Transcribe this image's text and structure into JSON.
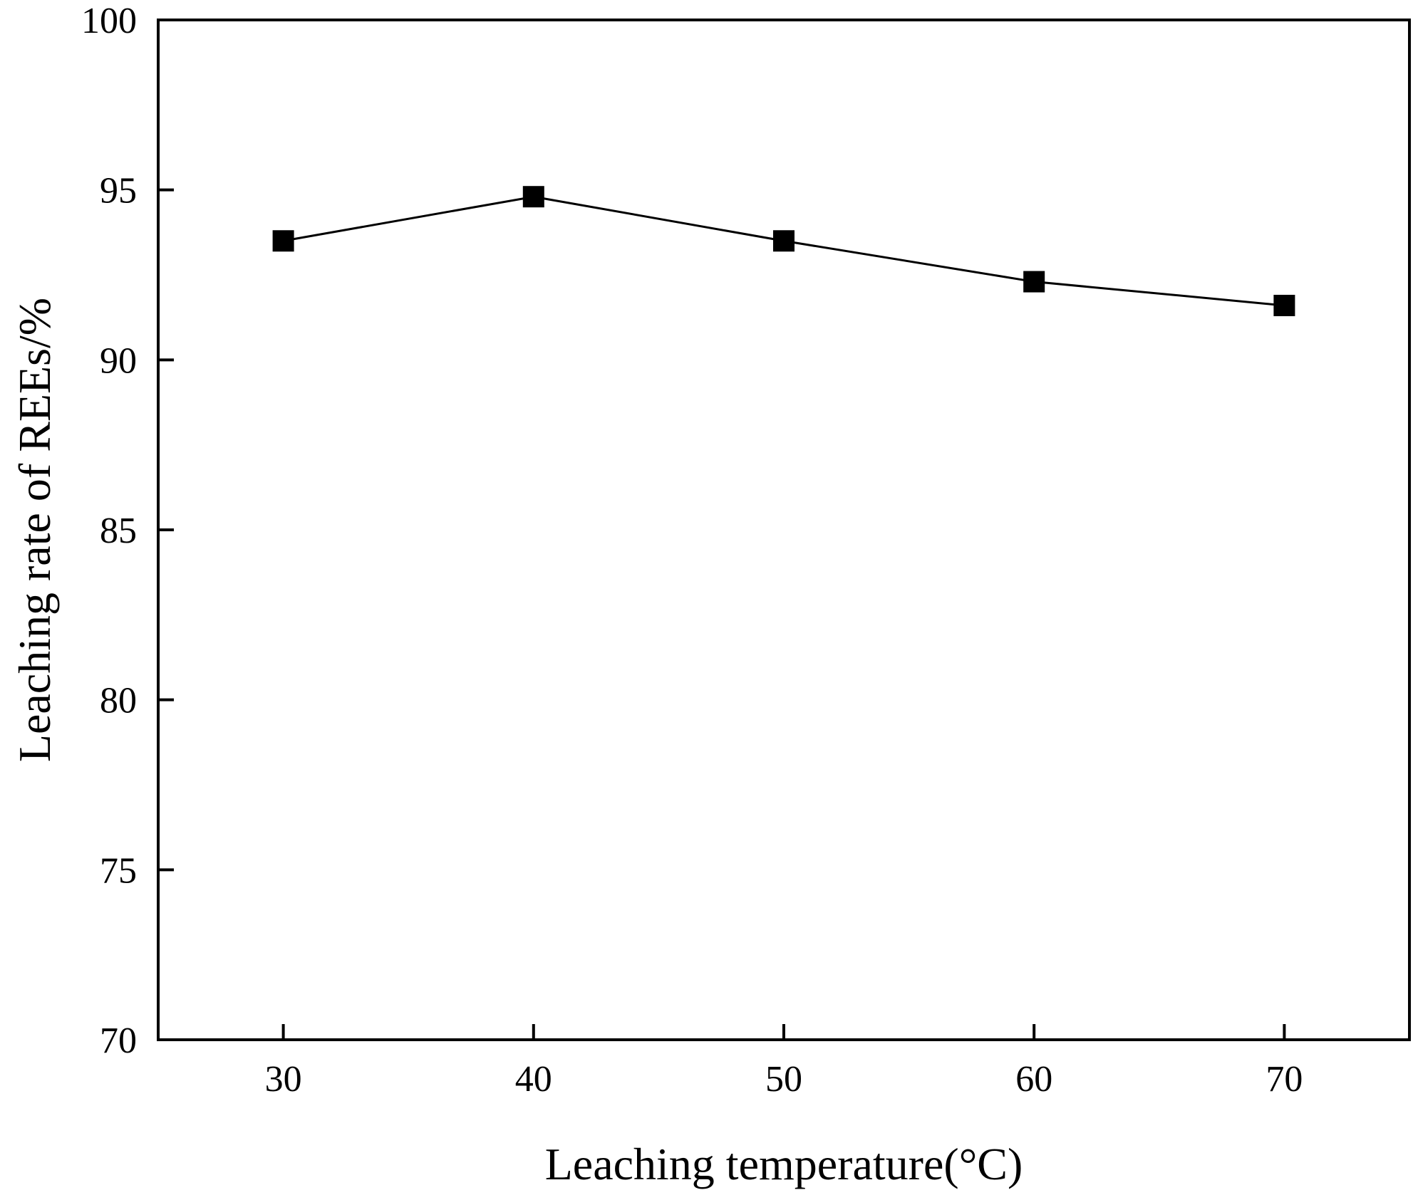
{
  "chart_data": {
    "type": "line",
    "title": "",
    "xlabel": "Leaching temperature(°C)",
    "ylabel": "Leaching rate of REEs/%",
    "xlim": [
      25,
      75
    ],
    "ylim": [
      70,
      100
    ],
    "xticks": [
      30,
      40,
      50,
      60,
      70
    ],
    "yticks": [
      70,
      75,
      80,
      85,
      90,
      95,
      100
    ],
    "xtick_labels": [
      "30",
      "40",
      "50",
      "60",
      "70"
    ],
    "ytick_labels": [
      "70",
      "75",
      "80",
      "85",
      "90",
      "95",
      "100"
    ],
    "grid": false,
    "legend": "none",
    "marker": "square",
    "series": [
      {
        "name": "Leaching rate of REEs",
        "color": "#000000",
        "x": [
          30,
          40,
          50,
          60,
          70
        ],
        "values": [
          93.5,
          94.8,
          93.5,
          92.3,
          91.6
        ]
      }
    ]
  }
}
